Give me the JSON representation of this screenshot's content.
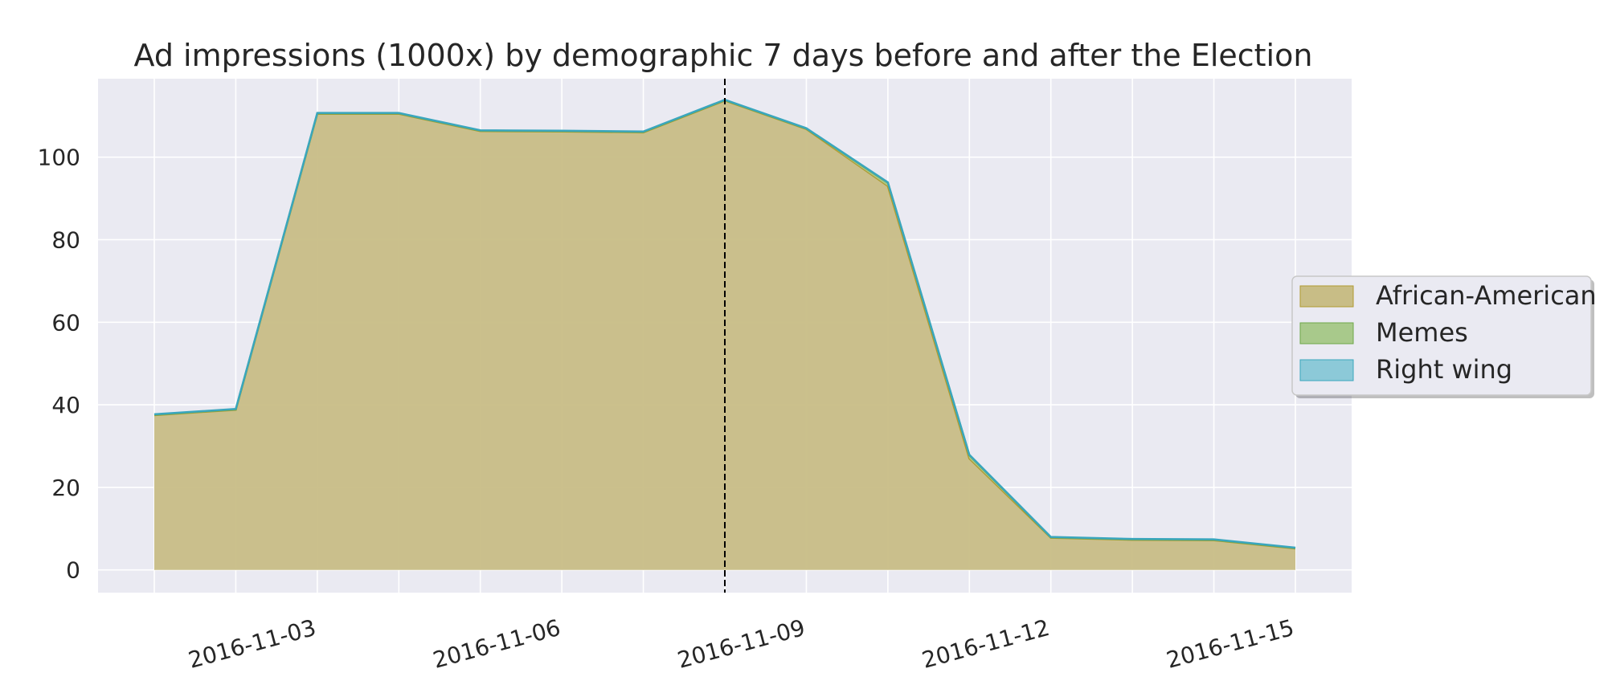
{
  "chart_data": {
    "type": "area",
    "title": "Ad impressions (1000x) by demographic 7 days before and after the Election",
    "xlabel": "",
    "ylabel": "",
    "x": [
      "2016-11-01",
      "2016-11-02",
      "2016-11-03",
      "2016-11-04",
      "2016-11-05",
      "2016-11-06",
      "2016-11-07",
      "2016-11-08",
      "2016-11-09",
      "2016-11-10",
      "2016-11-11",
      "2016-11-12",
      "2016-11-13",
      "2016-11-14",
      "2016-11-15"
    ],
    "x_tick_labels": [
      "2016-11-03",
      "2016-11-06",
      "2016-11-09",
      "2016-11-12",
      "2016-11-15"
    ],
    "y_tick_labels": [
      "0",
      "20",
      "40",
      "60",
      "80",
      "100"
    ],
    "ylim": [
      -5.5,
      119
    ],
    "grid": true,
    "legend_position": "center-right, outside plot",
    "vline": {
      "x": "2016-11-08",
      "style": "dashed",
      "color": "#000000"
    },
    "series": [
      {
        "name": "African-American",
        "color": "#c8bd86",
        "edge": "#b09b30",
        "values": [
          37.5,
          38.8,
          110.5,
          110.5,
          106.3,
          106.2,
          106.0,
          113.7,
          106.8,
          93.0,
          27.0,
          7.8,
          7.3,
          7.2,
          5.2
        ]
      },
      {
        "name": "Memes",
        "color": "#a8c98b",
        "edge": "#6ea84a",
        "values": [
          0.1,
          0.1,
          0.1,
          0.1,
          0.1,
          0.1,
          0.1,
          0.1,
          0.1,
          0.8,
          0.8,
          0.1,
          0.1,
          0.1,
          0.1
        ]
      },
      {
        "name": "Right wing",
        "color": "#8cc9d8",
        "edge": "#3aa6bd",
        "values": [
          0.1,
          0.1,
          0.1,
          0.1,
          0.1,
          0.1,
          0.1,
          0.1,
          0.1,
          0.1,
          0.1,
          0.1,
          0.1,
          0.1,
          0.1
        ]
      }
    ]
  }
}
